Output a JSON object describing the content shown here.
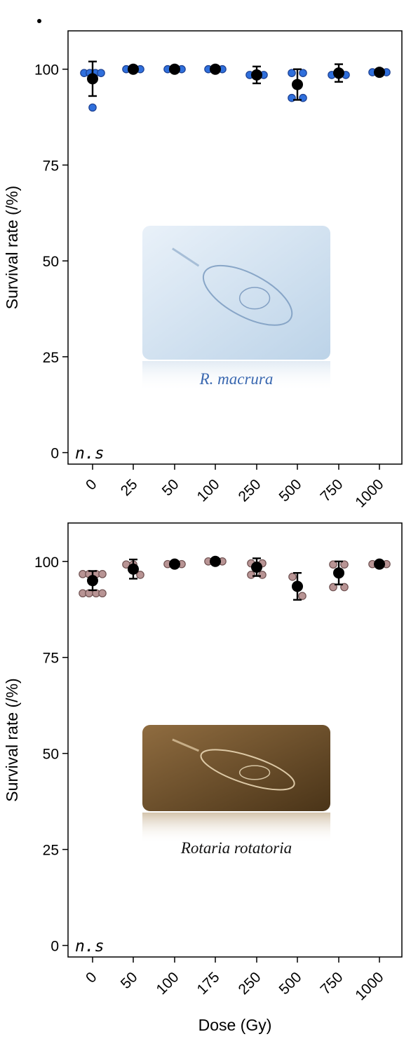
{
  "chart_data": [
    {
      "type": "scatter",
      "panel": "top",
      "title": "",
      "xlabel": "",
      "ylabel": "Survival rate (/%)",
      "ylim": [
        -3,
        110
      ],
      "yticks": [
        0,
        25,
        50,
        75,
        100
      ],
      "categories": [
        "0",
        "25",
        "50",
        "100",
        "250",
        "500",
        "750",
        "1000"
      ],
      "annotation": "n.s",
      "species_label": "R. macrura",
      "species_label_color": "#3a68b0",
      "replicate_color": "#2f6fdc",
      "replicate_stroke": "#1c3f8f",
      "mean_color": "#000000",
      "image_tint": [
        "#e9f1f9",
        "#bcd3e8"
      ],
      "means": [
        97.5,
        100,
        100,
        100,
        98.5,
        96,
        99,
        99.2
      ],
      "errors": [
        4.5,
        0.6,
        0.6,
        0.6,
        2.2,
        4,
        2.3,
        0.5
      ],
      "replicates": [
        [
          99,
          99,
          99,
          99,
          90
        ],
        [
          100,
          100,
          100
        ],
        [
          100,
          100,
          100
        ],
        [
          100,
          100,
          100
        ],
        [
          98.5,
          98.5,
          98.5
        ],
        [
          99,
          99,
          92.5,
          92.5
        ],
        [
          98.5,
          98.5,
          98.5
        ],
        [
          99.2,
          99.2,
          99.2
        ]
      ]
    },
    {
      "type": "scatter",
      "panel": "bottom",
      "title": "",
      "xlabel": "Dose (Gy)",
      "ylabel": "Survival rate (/%)",
      "ylim": [
        -3,
        110
      ],
      "yticks": [
        0,
        25,
        50,
        75,
        100
      ],
      "categories": [
        "0",
        "50",
        "100",
        "175",
        "250",
        "500",
        "750",
        "1000"
      ],
      "annotation": "n.s",
      "species_label": "Rotaria rotatoria",
      "species_label_color": "#111111",
      "replicate_color": "#b89494",
      "replicate_stroke": "#6e5050",
      "mean_color": "#000000",
      "image_tint": [
        "#8f6c40",
        "#4a3418"
      ],
      "means": [
        95,
        98,
        99.3,
        100,
        98.5,
        93.5,
        97,
        99.3
      ],
      "errors": [
        2.5,
        2.5,
        0.5,
        0.5,
        2.3,
        3.5,
        3,
        0.5
      ],
      "replicates": [
        [
          96.7,
          96.7,
          96.7,
          96.7,
          91.7,
          91.7,
          91.7,
          91.7
        ],
        [
          99.2,
          99.2,
          96.5
        ],
        [
          99.3,
          99.3,
          99.3
        ],
        [
          100,
          100,
          100
        ],
        [
          99.5,
          99.5,
          96.5,
          96.5
        ],
        [
          96,
          91
        ],
        [
          99.2,
          99.2,
          93.3,
          93.3
        ],
        [
          99.3,
          99.3,
          99.3
        ]
      ]
    }
  ]
}
